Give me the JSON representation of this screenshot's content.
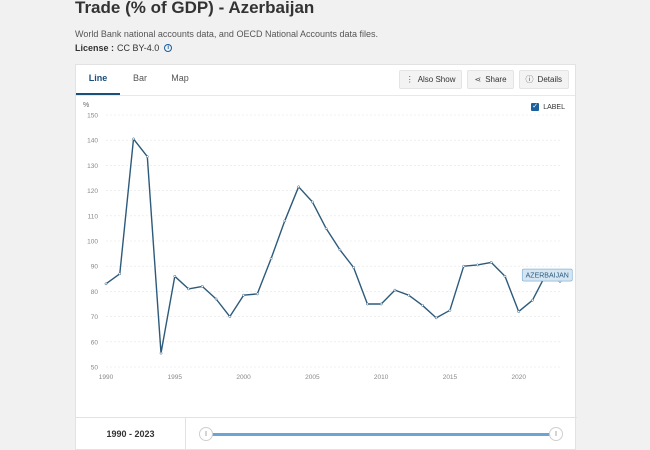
{
  "page": {
    "title": "Trade (% of GDP) - Azerbaijan",
    "subtitle": "World Bank national accounts data, and OECD National Accounts data files.",
    "license_label": "License :",
    "license_value": "CC BY-4.0"
  },
  "tabs": [
    {
      "label": "Line",
      "active": true
    },
    {
      "label": "Bar",
      "active": false
    },
    {
      "label": "Map",
      "active": false
    }
  ],
  "toolbar": {
    "also_show": "Also Show",
    "share": "Share",
    "details": "Details"
  },
  "legend_toggle": {
    "label": "LABEL",
    "checked": true
  },
  "footer": {
    "range_label": "1990 - 2023",
    "slider_start_label": "||",
    "slider_end_label": "||"
  },
  "colors": {
    "line": "#2d5a7b",
    "accent": "#1a5f9e",
    "tooltip_bg": "#d4e6f4"
  },
  "chart_data": {
    "type": "line",
    "ylabel": "%",
    "ylim": [
      50,
      150
    ],
    "yticks": [
      50,
      60,
      70,
      80,
      90,
      100,
      110,
      120,
      130,
      140,
      150
    ],
    "xlim": [
      1990,
      2023
    ],
    "xticks": [
      1990,
      1995,
      2000,
      2005,
      2010,
      2015,
      2020
    ],
    "grid": true,
    "series": [
      {
        "name": "AZERBAIJAN",
        "x": [
          1990,
          1991,
          1992,
          1993,
          1994,
          1995,
          1996,
          1997,
          1998,
          1999,
          2000,
          2001,
          2002,
          2003,
          2004,
          2005,
          2006,
          2007,
          2008,
          2009,
          2010,
          2011,
          2012,
          2013,
          2014,
          2015,
          2016,
          2017,
          2018,
          2019,
          2020,
          2021,
          2022,
          2023
        ],
        "values": [
          83,
          87,
          140.5,
          133.5,
          55.5,
          86,
          81,
          82,
          77,
          70,
          78.5,
          79,
          93,
          108,
          121.5,
          115.5,
          105,
          96.5,
          89.5,
          75,
          75,
          80.5,
          78.5,
          74.5,
          69.5,
          72.5,
          90,
          90.5,
          91.5,
          86,
          72,
          76.5,
          87,
          84
        ]
      }
    ],
    "annotations": [
      "AZERBAIJAN"
    ]
  }
}
